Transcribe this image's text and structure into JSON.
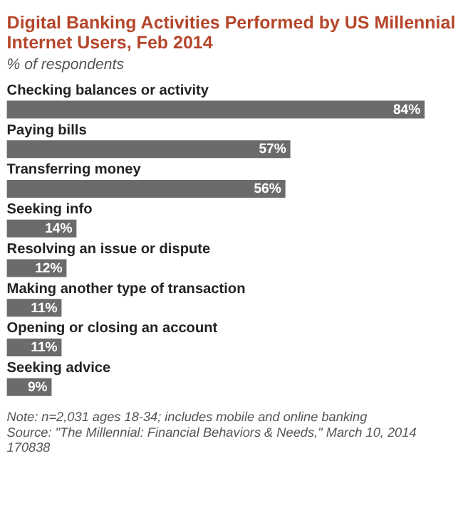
{
  "chart_data": {
    "type": "bar",
    "orientation": "horizontal",
    "title": "Digital Banking Activities Performed by US Millennial Internet Users, Feb 2014",
    "subtitle": "% of respondents",
    "categories": [
      "Checking balances or activity",
      "Paying bills",
      "Transferring money",
      "Seeking info",
      "Resolving an issue or dispute",
      "Making another type of transaction",
      "Opening or closing an account",
      "Seeking advice"
    ],
    "values": [
      84,
      57,
      56,
      14,
      12,
      11,
      11,
      9
    ],
    "color": "#6b6b6b",
    "data_labels": true,
    "value_labels": [
      "84%",
      "57%",
      "56%",
      "14%",
      "12%",
      "11%",
      "11%",
      "9%"
    ],
    "annotations": [
      "Note: n=2,031 ages 18-34; includes mobile and online banking",
      "Source: \"The Millennial: Financial Behaviors & Needs,\" March 10, 2014",
      "170838"
    ]
  }
}
